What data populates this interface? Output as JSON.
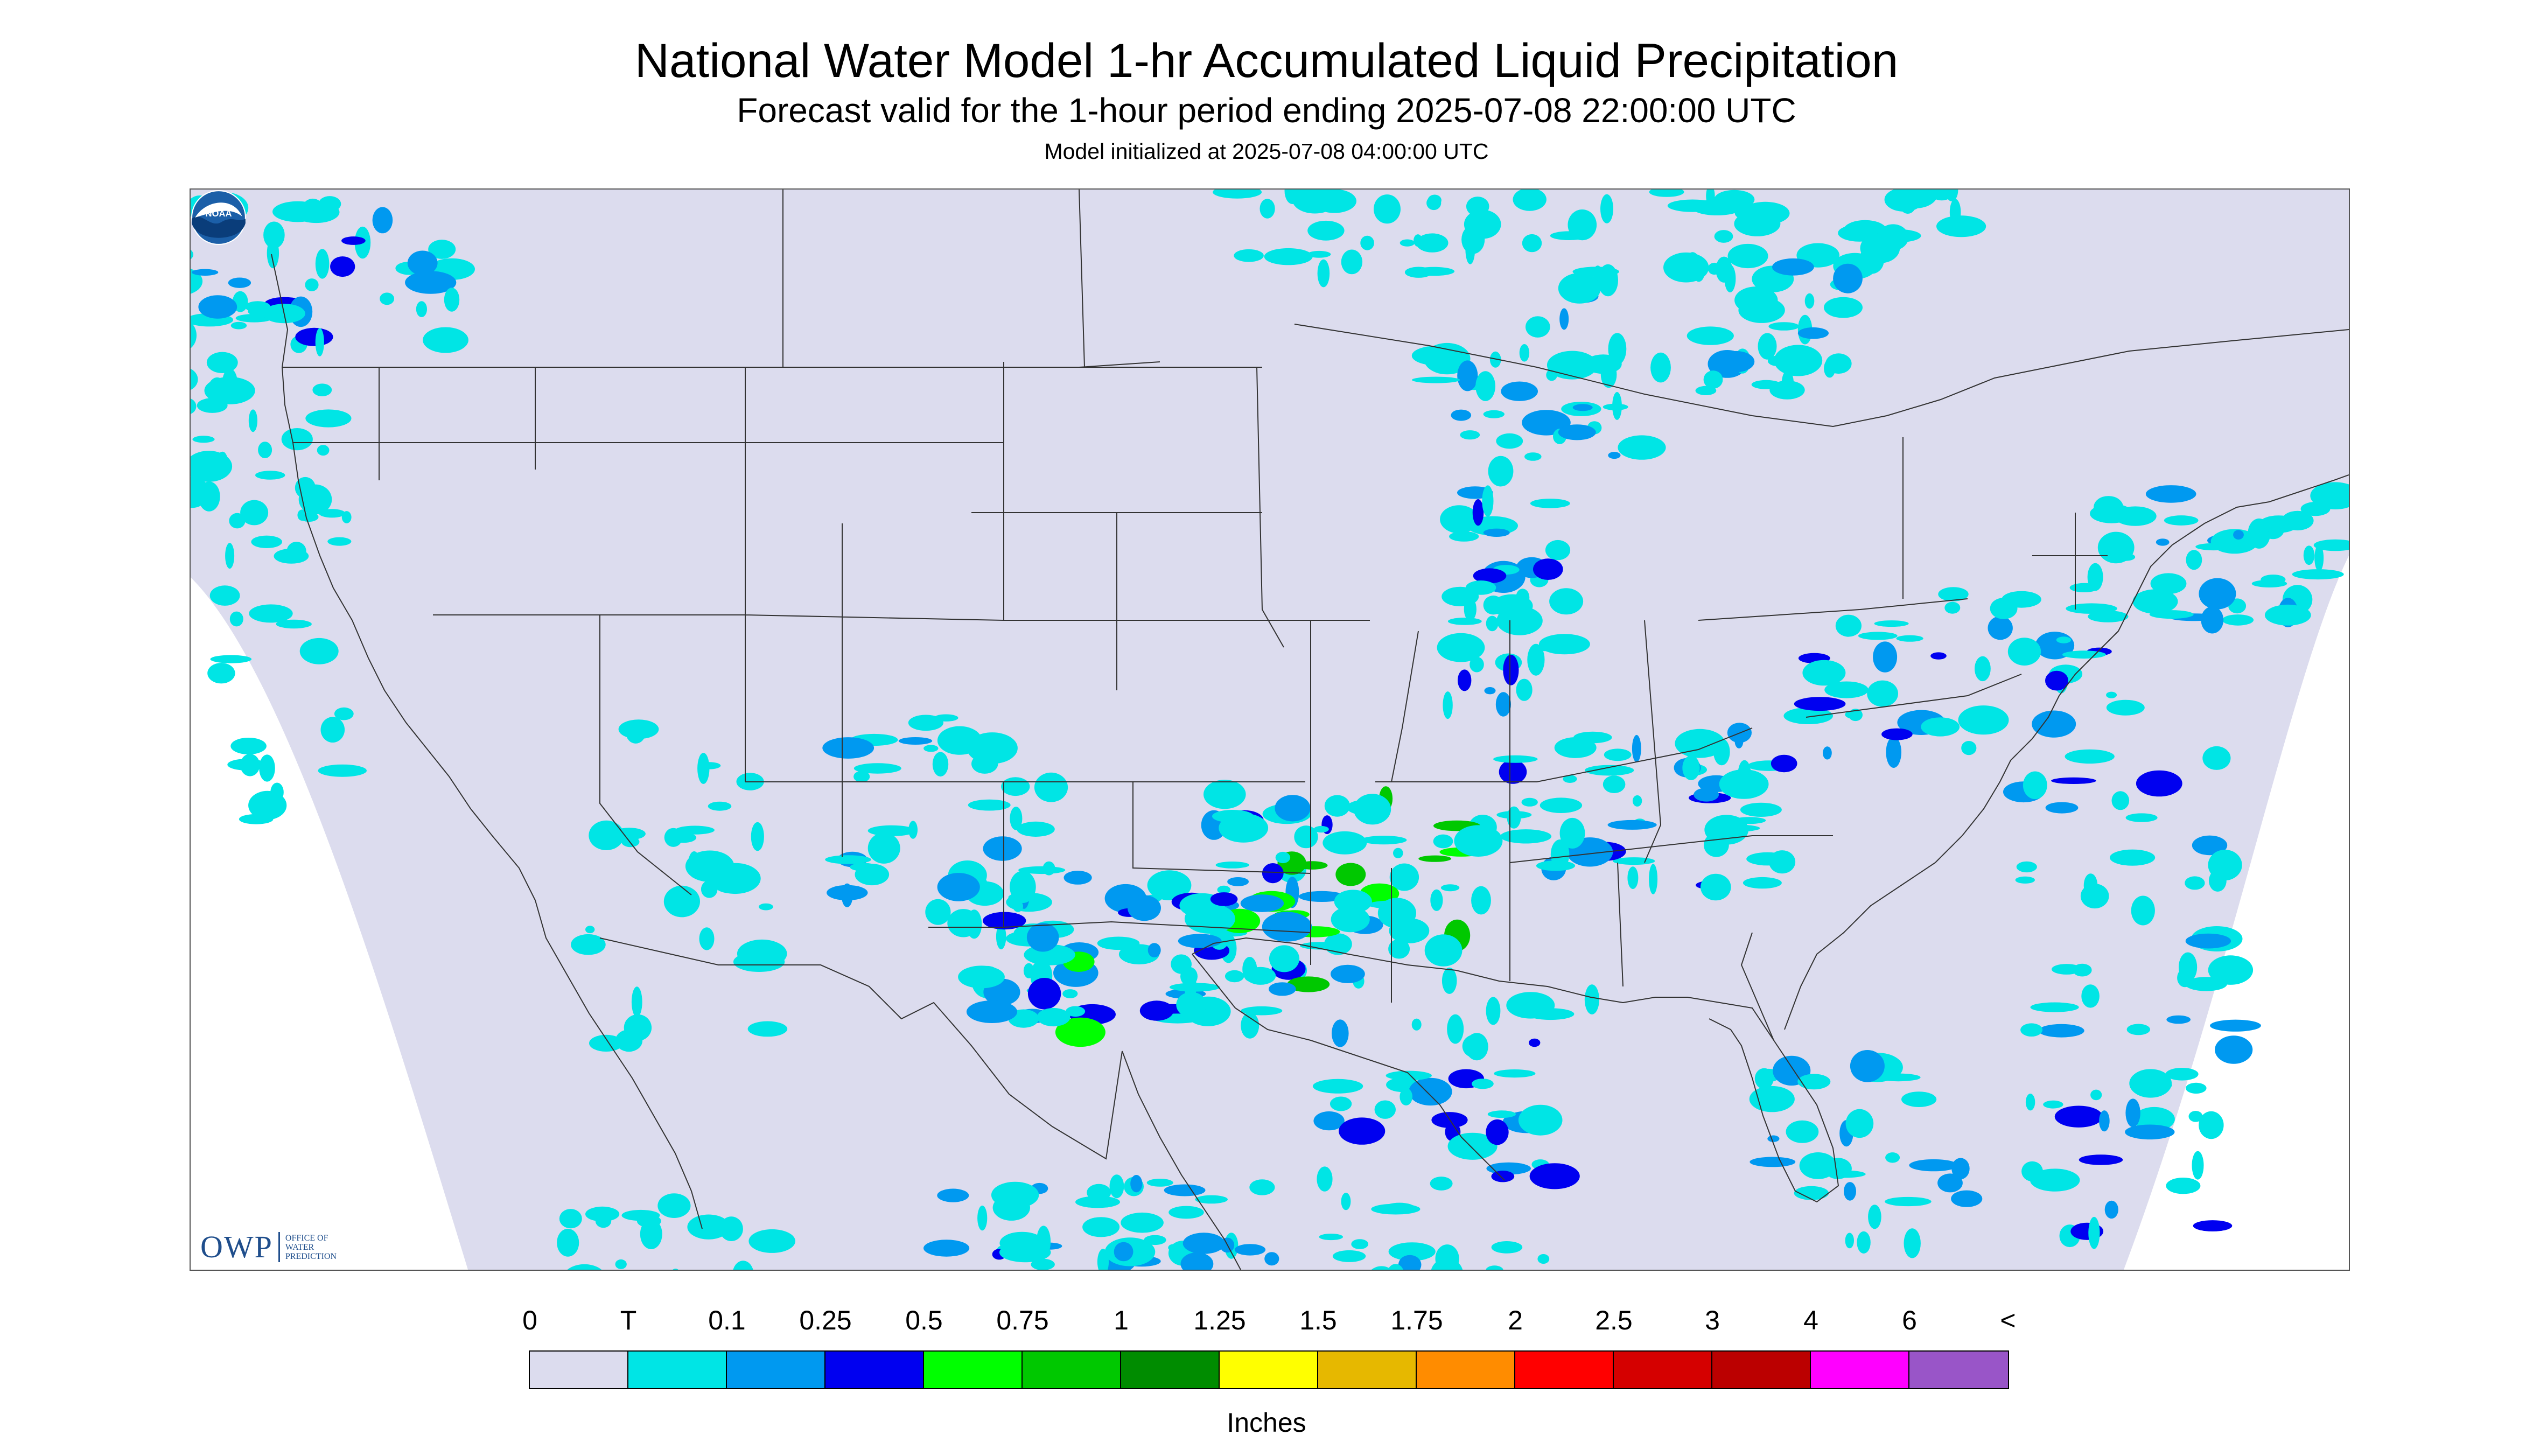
{
  "header": {
    "title": "National Water Model 1-hr Accumulated Liquid Precipitation",
    "subtitle": "Forecast valid for the 1-hour period ending 2025-07-08 22:00:00 UTC",
    "init_line": "Model initialized at 2025-07-08 04:00:00 UTC"
  },
  "map": {
    "background_color": "#dcdcee",
    "outside_color": "#ffffff",
    "border_color": "#333333",
    "logos": {
      "owp_mark": "OWP",
      "owp_text": "OFFICE OF\nWATER\nPREDICTION",
      "noaa_text": "NOAA"
    }
  },
  "legend": {
    "tick_labels": [
      "0",
      "T",
      "0.1",
      "0.25",
      "0.5",
      "0.75",
      "1",
      "1.25",
      "1.5",
      "1.75",
      "2",
      "2.5",
      "3",
      "4",
      "6",
      "<"
    ],
    "colors": [
      "#dcdcee",
      "#00e5e5",
      "#0099f0",
      "#0000f0",
      "#00ff00",
      "#00c800",
      "#008c00",
      "#ffff00",
      "#e6b800",
      "#ff8c00",
      "#ff0000",
      "#d50000",
      "#bb0000",
      "#ff00ff",
      "#9955c8"
    ],
    "units": "Inches"
  }
}
